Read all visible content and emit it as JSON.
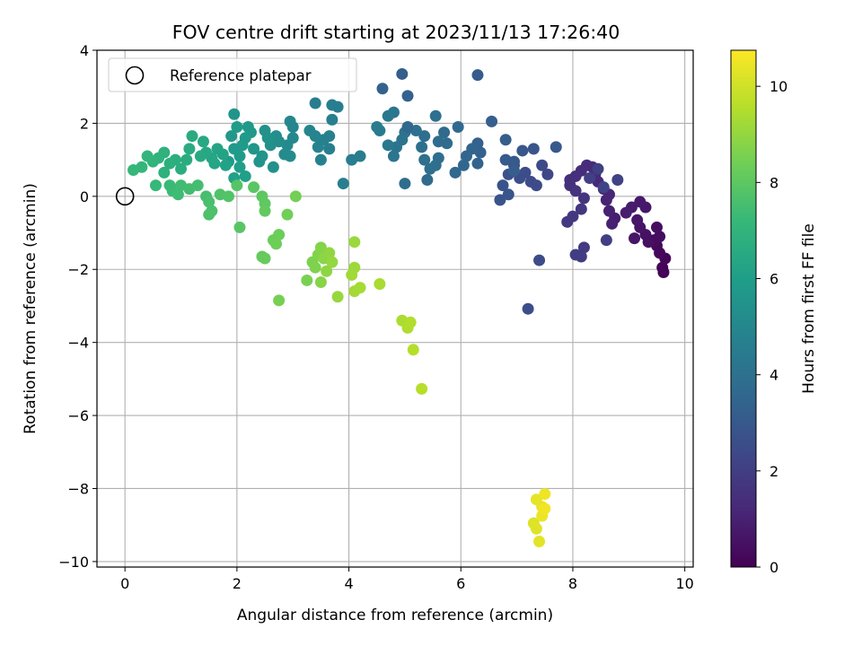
{
  "chart_data": {
    "type": "scatter",
    "title": "FOV centre drift starting at 2023/11/13 17:26:40",
    "xlabel": "Angular distance from reference (arcmin)",
    "ylabel": "Rotation from reference (arcmin)",
    "xlim": [
      -0.5,
      10.15
    ],
    "ylim": [
      -10.15,
      4.0
    ],
    "xticks": [
      0,
      2,
      4,
      6,
      8,
      10
    ],
    "yticks": [
      -10,
      -8,
      -6,
      -4,
      -2,
      0,
      2,
      4
    ],
    "grid": true,
    "legend": {
      "location": "top-left",
      "label": "Reference platepar"
    },
    "reference_point": {
      "x": 0,
      "y": 0
    },
    "colorbar": {
      "label": "Hours from first FF file",
      "colormap": "viridis",
      "range": [
        0,
        10.75
      ],
      "ticks": [
        0,
        2,
        4,
        6,
        8,
        10
      ]
    },
    "colormap_stops": [
      "#440154",
      "#482878",
      "#3e4989",
      "#31688e",
      "#26828e",
      "#1f9e89",
      "#35b779",
      "#6ece58",
      "#b5de2b",
      "#fde725"
    ],
    "points": [
      {
        "x": 9.62,
        "y": -2.08,
        "t": 0.05
      },
      {
        "x": 9.6,
        "y": -1.95,
        "t": 0.1
      },
      {
        "x": 9.65,
        "y": -1.7,
        "t": 0.15
      },
      {
        "x": 9.55,
        "y": -1.55,
        "t": 0.2
      },
      {
        "x": 9.5,
        "y": -1.35,
        "t": 0.25
      },
      {
        "x": 9.45,
        "y": -1.2,
        "t": 0.3
      },
      {
        "x": 9.55,
        "y": -1.1,
        "t": 0.35
      },
      {
        "x": 9.5,
        "y": -0.85,
        "t": 0.4
      },
      {
        "x": 9.35,
        "y": -1.25,
        "t": 0.45
      },
      {
        "x": 9.3,
        "y": -1.05,
        "t": 0.5
      },
      {
        "x": 9.2,
        "y": -0.85,
        "t": 0.55
      },
      {
        "x": 9.1,
        "y": -1.15,
        "t": 0.6
      },
      {
        "x": 9.15,
        "y": -0.65,
        "t": 0.65
      },
      {
        "x": 9.3,
        "y": -0.3,
        "t": 0.7
      },
      {
        "x": 9.2,
        "y": -0.15,
        "t": 0.75
      },
      {
        "x": 9.05,
        "y": -0.3,
        "t": 0.8
      },
      {
        "x": 8.95,
        "y": -0.45,
        "t": 0.85
      },
      {
        "x": 8.75,
        "y": -0.6,
        "t": 0.9
      },
      {
        "x": 8.7,
        "y": -0.75,
        "t": 0.95
      },
      {
        "x": 8.65,
        "y": -0.4,
        "t": 1.0
      },
      {
        "x": 8.6,
        "y": -0.1,
        "t": 1.05
      },
      {
        "x": 8.65,
        "y": 0.05,
        "t": 1.1
      },
      {
        "x": 8.55,
        "y": 0.2,
        "t": 1.15
      },
      {
        "x": 8.45,
        "y": 0.4,
        "t": 1.2
      },
      {
        "x": 8.4,
        "y": 0.6,
        "t": 1.25
      },
      {
        "x": 8.35,
        "y": 0.8,
        "t": 1.3
      },
      {
        "x": 8.25,
        "y": 0.85,
        "t": 1.35
      },
      {
        "x": 8.15,
        "y": 0.7,
        "t": 1.4
      },
      {
        "x": 8.05,
        "y": 0.55,
        "t": 1.45
      },
      {
        "x": 7.95,
        "y": 0.45,
        "t": 1.5
      },
      {
        "x": 7.95,
        "y": 0.3,
        "t": 1.55
      },
      {
        "x": 8.05,
        "y": 0.15,
        "t": 1.6
      },
      {
        "x": 8.2,
        "y": -0.05,
        "t": 1.65
      },
      {
        "x": 8.15,
        "y": -0.35,
        "t": 1.7
      },
      {
        "x": 8.0,
        "y": -0.55,
        "t": 1.75
      },
      {
        "x": 7.9,
        "y": -0.7,
        "t": 1.8
      },
      {
        "x": 8.2,
        "y": -1.4,
        "t": 1.85
      },
      {
        "x": 8.15,
        "y": -1.65,
        "t": 1.9
      },
      {
        "x": 8.05,
        "y": -1.6,
        "t": 1.95
      },
      {
        "x": 8.6,
        "y": -1.2,
        "t": 2.0
      },
      {
        "x": 8.3,
        "y": 0.5,
        "t": 2.05
      },
      {
        "x": 8.45,
        "y": 0.75,
        "t": 2.1
      },
      {
        "x": 8.8,
        "y": 0.45,
        "t": 2.15
      },
      {
        "x": 8.55,
        "y": 0.25,
        "t": 2.2
      },
      {
        "x": 7.55,
        "y": 0.6,
        "t": 2.3
      },
      {
        "x": 7.45,
        "y": 0.85,
        "t": 2.4
      },
      {
        "x": 7.35,
        "y": 0.3,
        "t": 2.45
      },
      {
        "x": 7.25,
        "y": 0.4,
        "t": 2.5
      },
      {
        "x": 7.15,
        "y": 0.65,
        "t": 2.55
      },
      {
        "x": 7.05,
        "y": 0.5,
        "t": 2.6
      },
      {
        "x": 6.95,
        "y": 0.85,
        "t": 2.65
      },
      {
        "x": 6.85,
        "y": 0.6,
        "t": 2.7
      },
      {
        "x": 6.75,
        "y": 0.3,
        "t": 2.75
      },
      {
        "x": 6.7,
        "y": -0.1,
        "t": 2.8
      },
      {
        "x": 6.85,
        "y": 0.05,
        "t": 2.85
      },
      {
        "x": 7.4,
        "y": -1.75,
        "t": 2.5
      },
      {
        "x": 7.2,
        "y": -3.08,
        "t": 2.55
      },
      {
        "x": 7.3,
        "y": 1.3,
        "t": 2.9
      },
      {
        "x": 7.1,
        "y": 1.25,
        "t": 2.95
      },
      {
        "x": 7.7,
        "y": 1.35,
        "t": 3.0
      },
      {
        "x": 6.95,
        "y": 0.95,
        "t": 3.05
      },
      {
        "x": 6.8,
        "y": 1.0,
        "t": 3.1
      },
      {
        "x": 6.95,
        "y": 0.7,
        "t": 3.15
      },
      {
        "x": 6.8,
        "y": 1.55,
        "t": 3.2
      },
      {
        "x": 6.55,
        "y": 2.05,
        "t": 3.25
      },
      {
        "x": 6.3,
        "y": 1.45,
        "t": 3.3
      },
      {
        "x": 6.35,
        "y": 1.2,
        "t": 3.35
      },
      {
        "x": 6.3,
        "y": 0.9,
        "t": 3.4
      },
      {
        "x": 6.2,
        "y": 1.3,
        "t": 3.45
      },
      {
        "x": 6.1,
        "y": 1.1,
        "t": 3.5
      },
      {
        "x": 6.05,
        "y": 0.85,
        "t": 3.55
      },
      {
        "x": 5.9,
        "y": 0.65,
        "t": 3.6
      },
      {
        "x": 5.95,
        "y": 1.9,
        "t": 3.65
      },
      {
        "x": 5.7,
        "y": 1.75,
        "t": 3.7
      },
      {
        "x": 5.75,
        "y": 1.45,
        "t": 3.75
      },
      {
        "x": 5.6,
        "y": 1.5,
        "t": 3.8
      },
      {
        "x": 5.6,
        "y": 1.05,
        "t": 3.85
      },
      {
        "x": 5.55,
        "y": 0.85,
        "t": 3.9
      },
      {
        "x": 5.45,
        "y": 0.75,
        "t": 3.95
      },
      {
        "x": 5.55,
        "y": 2.2,
        "t": 4.0
      },
      {
        "x": 5.35,
        "y": 1.65,
        "t": 3.85
      },
      {
        "x": 5.3,
        "y": 1.35,
        "t": 3.9
      },
      {
        "x": 5.35,
        "y": 1.0,
        "t": 3.95
      },
      {
        "x": 5.2,
        "y": 1.8,
        "t": 4.0
      },
      {
        "x": 5.0,
        "y": 1.75,
        "t": 4.05
      },
      {
        "x": 5.05,
        "y": 1.9,
        "t": 3.6
      },
      {
        "x": 4.95,
        "y": 1.55,
        "t": 4.1
      },
      {
        "x": 4.85,
        "y": 1.35,
        "t": 4.15
      },
      {
        "x": 4.8,
        "y": 1.1,
        "t": 4.2
      },
      {
        "x": 4.7,
        "y": 1.4,
        "t": 4.25
      },
      {
        "x": 5.05,
        "y": 2.75,
        "t": 3.3
      },
      {
        "x": 4.95,
        "y": 3.35,
        "t": 3.2
      },
      {
        "x": 6.3,
        "y": 3.32,
        "t": 3.1
      },
      {
        "x": 4.6,
        "y": 2.95,
        "t": 3.4
      },
      {
        "x": 4.8,
        "y": 2.3,
        "t": 4.2
      },
      {
        "x": 4.7,
        "y": 2.2,
        "t": 4.3
      },
      {
        "x": 4.55,
        "y": 1.8,
        "t": 4.4
      },
      {
        "x": 4.5,
        "y": 1.9,
        "t": 4.45
      },
      {
        "x": 5.0,
        "y": 0.35,
        "t": 3.8
      },
      {
        "x": 5.4,
        "y": 0.45,
        "t": 3.7
      },
      {
        "x": 4.2,
        "y": 1.1,
        "t": 4.5
      },
      {
        "x": 4.05,
        "y": 1.0,
        "t": 4.55
      },
      {
        "x": 3.9,
        "y": 0.35,
        "t": 4.6
      },
      {
        "x": 3.65,
        "y": 1.3,
        "t": 4.65
      },
      {
        "x": 3.55,
        "y": 1.55,
        "t": 4.7
      },
      {
        "x": 3.5,
        "y": 1.0,
        "t": 4.75
      },
      {
        "x": 3.45,
        "y": 1.35,
        "t": 4.8
      },
      {
        "x": 3.4,
        "y": 1.65,
        "t": 4.85
      },
      {
        "x": 3.3,
        "y": 1.8,
        "t": 4.9
      },
      {
        "x": 3.4,
        "y": 2.55,
        "t": 4.5
      },
      {
        "x": 3.7,
        "y": 2.5,
        "t": 4.55
      },
      {
        "x": 3.8,
        "y": 2.45,
        "t": 4.6
      },
      {
        "x": 3.7,
        "y": 2.1,
        "t": 4.65
      },
      {
        "x": 3.65,
        "y": 1.65,
        "t": 4.7
      },
      {
        "x": 3.0,
        "y": 1.9,
        "t": 4.95
      },
      {
        "x": 2.95,
        "y": 2.05,
        "t": 5.0
      },
      {
        "x": 3.0,
        "y": 1.6,
        "t": 5.05
      },
      {
        "x": 2.9,
        "y": 1.4,
        "t": 5.1
      },
      {
        "x": 2.95,
        "y": 1.1,
        "t": 5.15
      },
      {
        "x": 2.85,
        "y": 1.15,
        "t": 5.2
      },
      {
        "x": 2.75,
        "y": 1.5,
        "t": 5.25
      },
      {
        "x": 2.7,
        "y": 1.65,
        "t": 5.3
      },
      {
        "x": 2.6,
        "y": 1.4,
        "t": 5.35
      },
      {
        "x": 2.65,
        "y": 0.8,
        "t": 5.4
      },
      {
        "x": 2.5,
        "y": 1.8,
        "t": 5.45
      },
      {
        "x": 2.55,
        "y": 1.6,
        "t": 5.5
      },
      {
        "x": 2.45,
        "y": 1.1,
        "t": 5.55
      },
      {
        "x": 2.4,
        "y": 0.95,
        "t": 5.6
      },
      {
        "x": 2.3,
        "y": 1.3,
        "t": 5.65
      },
      {
        "x": 2.25,
        "y": 1.75,
        "t": 5.7
      },
      {
        "x": 2.2,
        "y": 1.9,
        "t": 5.75
      },
      {
        "x": 2.15,
        "y": 1.6,
        "t": 5.8
      },
      {
        "x": 2.1,
        "y": 1.4,
        "t": 5.85
      },
      {
        "x": 2.05,
        "y": 1.1,
        "t": 5.9
      },
      {
        "x": 2.0,
        "y": 1.9,
        "t": 5.95
      },
      {
        "x": 1.95,
        "y": 2.25,
        "t": 5.6
      },
      {
        "x": 1.9,
        "y": 1.65,
        "t": 5.7
      },
      {
        "x": 1.95,
        "y": 1.3,
        "t": 5.8
      },
      {
        "x": 1.85,
        "y": 0.95,
        "t": 5.9
      },
      {
        "x": 2.05,
        "y": 0.8,
        "t": 6.0
      },
      {
        "x": 2.15,
        "y": 0.55,
        "t": 6.05
      },
      {
        "x": 1.95,
        "y": 0.5,
        "t": 6.1
      },
      {
        "x": 1.8,
        "y": 0.85,
        "t": 6.15
      },
      {
        "x": 1.75,
        "y": 1.15,
        "t": 6.2
      },
      {
        "x": 1.65,
        "y": 1.3,
        "t": 6.25
      },
      {
        "x": 1.6,
        "y": 0.9,
        "t": 6.3
      },
      {
        "x": 1.55,
        "y": 1.05,
        "t": 6.35
      },
      {
        "x": 1.45,
        "y": 1.2,
        "t": 6.4
      },
      {
        "x": 1.4,
        "y": 1.5,
        "t": 6.45
      },
      {
        "x": 1.35,
        "y": 1.1,
        "t": 6.5
      },
      {
        "x": 1.2,
        "y": 1.65,
        "t": 6.55
      },
      {
        "x": 1.15,
        "y": 1.3,
        "t": 6.6
      },
      {
        "x": 1.1,
        "y": 1.0,
        "t": 6.65
      },
      {
        "x": 1.0,
        "y": 0.75,
        "t": 6.7
      },
      {
        "x": 0.9,
        "y": 1.0,
        "t": 6.75
      },
      {
        "x": 0.8,
        "y": 0.9,
        "t": 6.8
      },
      {
        "x": 0.7,
        "y": 0.65,
        "t": 6.85
      },
      {
        "x": 0.7,
        "y": 1.2,
        "t": 6.9
      },
      {
        "x": 0.6,
        "y": 1.05,
        "t": 6.95
      },
      {
        "x": 0.5,
        "y": 0.95,
        "t": 7.0
      },
      {
        "x": 0.4,
        "y": 1.1,
        "t": 7.05
      },
      {
        "x": 0.3,
        "y": 0.8,
        "t": 7.1
      },
      {
        "x": 0.15,
        "y": 0.72,
        "t": 7.15
      },
      {
        "x": 0.55,
        "y": 0.3,
        "t": 7.2
      },
      {
        "x": 0.8,
        "y": 0.3,
        "t": 7.25
      },
      {
        "x": 0.85,
        "y": 0.15,
        "t": 7.3
      },
      {
        "x": 0.95,
        "y": 0.05,
        "t": 7.35
      },
      {
        "x": 1.0,
        "y": 0.3,
        "t": 7.4
      },
      {
        "x": 1.15,
        "y": 0.2,
        "t": 7.45
      },
      {
        "x": 1.3,
        "y": 0.3,
        "t": 7.5
      },
      {
        "x": 1.45,
        "y": 0.0,
        "t": 7.55
      },
      {
        "x": 1.5,
        "y": -0.15,
        "t": 7.6
      },
      {
        "x": 1.55,
        "y": -0.4,
        "t": 7.65
      },
      {
        "x": 1.5,
        "y": -0.5,
        "t": 7.7
      },
      {
        "x": 1.7,
        "y": 0.05,
        "t": 7.75
      },
      {
        "x": 1.85,
        "y": 0.0,
        "t": 7.8
      },
      {
        "x": 2.0,
        "y": 0.3,
        "t": 7.85
      },
      {
        "x": 2.05,
        "y": -0.85,
        "t": 7.9
      },
      {
        "x": 2.3,
        "y": 0.25,
        "t": 7.95
      },
      {
        "x": 2.45,
        "y": 0.0,
        "t": 8.0
      },
      {
        "x": 2.5,
        "y": -0.2,
        "t": 8.05
      },
      {
        "x": 2.5,
        "y": -0.4,
        "t": 8.1
      },
      {
        "x": 2.45,
        "y": -1.65,
        "t": 8.15
      },
      {
        "x": 2.5,
        "y": -1.7,
        "t": 8.2
      },
      {
        "x": 2.65,
        "y": -1.2,
        "t": 8.25
      },
      {
        "x": 2.75,
        "y": -1.05,
        "t": 8.3
      },
      {
        "x": 2.7,
        "y": -1.3,
        "t": 8.35
      },
      {
        "x": 2.9,
        "y": -0.5,
        "t": 8.4
      },
      {
        "x": 3.05,
        "y": 0.0,
        "t": 8.45
      },
      {
        "x": 2.75,
        "y": -2.85,
        "t": 8.5
      },
      {
        "x": 3.25,
        "y": -2.3,
        "t": 8.55
      },
      {
        "x": 3.35,
        "y": -1.8,
        "t": 8.6
      },
      {
        "x": 3.4,
        "y": -1.95,
        "t": 8.65
      },
      {
        "x": 3.45,
        "y": -1.6,
        "t": 8.7
      },
      {
        "x": 3.5,
        "y": -1.4,
        "t": 8.75
      },
      {
        "x": 3.5,
        "y": -2.35,
        "t": 8.8
      },
      {
        "x": 3.55,
        "y": -1.7,
        "t": 8.85
      },
      {
        "x": 3.6,
        "y": -2.05,
        "t": 8.9
      },
      {
        "x": 3.65,
        "y": -1.55,
        "t": 8.95
      },
      {
        "x": 3.7,
        "y": -1.8,
        "t": 9.0
      },
      {
        "x": 3.8,
        "y": -2.75,
        "t": 9.05
      },
      {
        "x": 4.1,
        "y": -1.25,
        "t": 9.1
      },
      {
        "x": 4.1,
        "y": -1.95,
        "t": 9.15
      },
      {
        "x": 4.05,
        "y": -2.15,
        "t": 9.2
      },
      {
        "x": 4.1,
        "y": -2.6,
        "t": 9.25
      },
      {
        "x": 4.2,
        "y": -2.5,
        "t": 9.3
      },
      {
        "x": 4.55,
        "y": -2.4,
        "t": 9.35
      },
      {
        "x": 4.95,
        "y": -3.4,
        "t": 9.4
      },
      {
        "x": 5.05,
        "y": -3.6,
        "t": 9.45
      },
      {
        "x": 5.1,
        "y": -3.45,
        "t": 9.5
      },
      {
        "x": 5.15,
        "y": -4.2,
        "t": 9.55
      },
      {
        "x": 5.3,
        "y": -5.27,
        "t": 9.6
      },
      {
        "x": 7.3,
        "y": -8.95,
        "t": 10.2
      },
      {
        "x": 7.35,
        "y": -9.1,
        "t": 10.25
      },
      {
        "x": 7.4,
        "y": -9.45,
        "t": 10.3
      },
      {
        "x": 7.35,
        "y": -8.3,
        "t": 10.35
      },
      {
        "x": 7.45,
        "y": -8.5,
        "t": 10.4
      },
      {
        "x": 7.45,
        "y": -8.75,
        "t": 10.45
      },
      {
        "x": 7.5,
        "y": -8.15,
        "t": 10.5
      },
      {
        "x": 7.5,
        "y": -8.55,
        "t": 10.55
      }
    ]
  }
}
